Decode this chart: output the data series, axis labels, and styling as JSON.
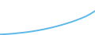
{
  "x": [
    0,
    1,
    2,
    3,
    4,
    5,
    6,
    7,
    8,
    9,
    10,
    11,
    12,
    13,
    14,
    15,
    16,
    17,
    18,
    19,
    20
  ],
  "y": [
    0.5,
    0.8,
    1.1,
    1.5,
    2.0,
    2.5,
    3.1,
    3.8,
    4.6,
    5.5,
    6.5,
    7.6,
    8.8,
    10.1,
    11.5,
    13.0,
    14.7,
    16.5,
    18.5,
    21.0,
    24.0
  ],
  "line_color": "#5bb8e8",
  "line_width": 1.4,
  "background_color": "#ffffff",
  "ylim_min": 0,
  "ylim_max": 35
}
